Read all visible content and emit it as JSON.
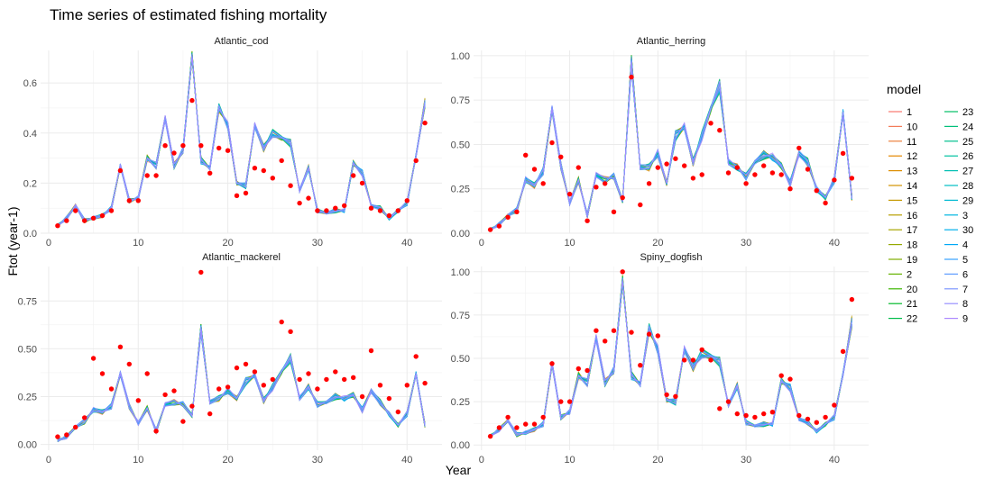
{
  "chart_data": {
    "type": "line",
    "title": "Time series of estimated fishing mortality",
    "xlabel": "Year",
    "ylabel": "Ftot (year-1)",
    "legend": {
      "title": "model",
      "placement": "right",
      "entries": [
        "1",
        "10",
        "11",
        "12",
        "13",
        "14",
        "15",
        "16",
        "17",
        "18",
        "19",
        "2",
        "20",
        "21",
        "22",
        "23",
        "24",
        "25",
        "26",
        "27",
        "28",
        "29",
        "3",
        "30",
        "4",
        "5",
        "6",
        "7",
        "8",
        "9"
      ],
      "colors": [
        "#F8766D",
        "#F37B59",
        "#ED813E",
        "#E58700",
        "#DC8D00",
        "#D19300",
        "#C59900",
        "#B79F00",
        "#A7A500",
        "#95A900",
        "#7FAE00",
        "#64B200",
        "#3BB600",
        "#00B929",
        "#00BC49",
        "#00BE63",
        "#00C07A",
        "#00C08E",
        "#00C1A1",
        "#00BFB2",
        "#00BDC3",
        "#00BAD2",
        "#00B5E0",
        "#00AFEC",
        "#00A8F6",
        "#35A2FF",
        "#5E9BFF",
        "#7D96FF",
        "#978FFF",
        "#AC88FF"
      ]
    },
    "x_ticks": [
      0,
      10,
      20,
      30,
      40
    ],
    "points_color": "#FF0000",
    "facets": [
      {
        "name": "Atlantic_cod",
        "ylim": [
          0,
          0.73
        ],
        "y_ticks": [
          0.0,
          0.2,
          0.4,
          0.6
        ],
        "y_tick_labels": [
          "0.0",
          "0.2",
          "0.4",
          "0.6"
        ],
        "x": [
          1,
          2,
          3,
          4,
          5,
          6,
          7,
          8,
          9,
          10,
          11,
          12,
          13,
          14,
          15,
          16,
          17,
          18,
          19,
          20,
          21,
          22,
          23,
          24,
          25,
          26,
          27,
          28,
          29,
          30,
          31,
          32,
          33,
          34,
          35,
          36,
          37,
          38,
          39,
          40,
          41,
          42
        ],
        "model_mean": [
          0.03,
          0.06,
          0.11,
          0.05,
          0.06,
          0.07,
          0.1,
          0.27,
          0.13,
          0.14,
          0.3,
          0.27,
          0.46,
          0.27,
          0.33,
          0.71,
          0.29,
          0.26,
          0.5,
          0.43,
          0.2,
          0.19,
          0.43,
          0.34,
          0.4,
          0.38,
          0.36,
          0.17,
          0.26,
          0.09,
          0.08,
          0.09,
          0.09,
          0.28,
          0.24,
          0.11,
          0.1,
          0.06,
          0.09,
          0.12,
          0.31,
          0.52
        ],
        "observed": [
          0.03,
          0.05,
          0.09,
          0.05,
          0.06,
          0.07,
          0.09,
          0.25,
          0.13,
          0.13,
          0.23,
          0.23,
          0.35,
          0.32,
          0.35,
          0.53,
          0.35,
          0.24,
          0.34,
          0.33,
          0.15,
          0.16,
          0.26,
          0.25,
          0.22,
          0.29,
          0.19,
          0.12,
          0.14,
          0.09,
          0.09,
          0.1,
          0.11,
          0.23,
          0.2,
          0.1,
          0.09,
          0.07,
          0.09,
          0.13,
          0.29,
          0.44
        ]
      },
      {
        "name": "Atlantic_herring",
        "ylim": [
          0,
          1.03
        ],
        "y_ticks": [
          0.0,
          0.25,
          0.5,
          0.75,
          1.0
        ],
        "y_tick_labels": [
          "0.00",
          "0.25",
          "0.50",
          "0.75",
          "1.00"
        ],
        "x": [
          1,
          2,
          3,
          4,
          5,
          6,
          7,
          8,
          9,
          10,
          11,
          12,
          13,
          14,
          15,
          16,
          17,
          18,
          19,
          20,
          21,
          22,
          23,
          24,
          25,
          26,
          27,
          28,
          29,
          30,
          31,
          32,
          33,
          34,
          35,
          36,
          37,
          38,
          39,
          40,
          41,
          42
        ],
        "model_mean": [
          0.02,
          0.05,
          0.1,
          0.13,
          0.3,
          0.27,
          0.35,
          0.7,
          0.38,
          0.17,
          0.3,
          0.1,
          0.33,
          0.3,
          0.32,
          0.18,
          0.96,
          0.37,
          0.37,
          0.45,
          0.28,
          0.55,
          0.6,
          0.4,
          0.55,
          0.7,
          0.83,
          0.4,
          0.37,
          0.32,
          0.4,
          0.44,
          0.43,
          0.38,
          0.28,
          0.45,
          0.4,
          0.25,
          0.2,
          0.3,
          0.68,
          0.2
        ],
        "observed": [
          0.02,
          0.04,
          0.09,
          0.12,
          0.44,
          0.36,
          0.28,
          0.51,
          0.43,
          0.22,
          0.37,
          0.07,
          0.26,
          0.28,
          0.12,
          0.2,
          0.88,
          0.16,
          0.28,
          0.37,
          0.39,
          0.42,
          0.38,
          0.31,
          0.33,
          0.62,
          0.58,
          0.34,
          0.37,
          0.28,
          0.33,
          0.38,
          0.34,
          0.33,
          0.25,
          0.48,
          0.36,
          0.24,
          0.17,
          0.3,
          0.45,
          0.31
        ]
      },
      {
        "name": "Atlantic_mackerel",
        "ylim": [
          -0.03,
          0.93
        ],
        "y_ticks": [
          0.0,
          0.25,
          0.5,
          0.75
        ],
        "y_tick_labels": [
          "0.00",
          "0.25",
          "0.50",
          "0.75"
        ],
        "x": [
          1,
          2,
          3,
          4,
          5,
          6,
          7,
          8,
          9,
          10,
          11,
          12,
          13,
          14,
          15,
          16,
          17,
          18,
          19,
          20,
          21,
          22,
          23,
          24,
          25,
          26,
          27,
          28,
          29,
          30,
          31,
          32,
          33,
          34,
          35,
          36,
          37,
          38,
          39,
          40,
          41,
          42
        ],
        "model_mean": [
          0.02,
          0.04,
          0.09,
          0.12,
          0.18,
          0.17,
          0.2,
          0.37,
          0.2,
          0.11,
          0.19,
          0.07,
          0.21,
          0.22,
          0.21,
          0.15,
          0.6,
          0.22,
          0.24,
          0.28,
          0.24,
          0.33,
          0.36,
          0.23,
          0.3,
          0.38,
          0.45,
          0.24,
          0.3,
          0.21,
          0.22,
          0.25,
          0.24,
          0.26,
          0.18,
          0.28,
          0.22,
          0.16,
          0.1,
          0.16,
          0.37,
          0.1
        ],
        "observed": [
          0.04,
          0.05,
          0.09,
          0.14,
          0.45,
          0.37,
          0.29,
          0.51,
          0.42,
          0.23,
          0.37,
          0.07,
          0.26,
          0.28,
          0.12,
          0.2,
          0.9,
          0.16,
          0.29,
          0.3,
          0.4,
          0.42,
          0.38,
          0.31,
          0.34,
          0.64,
          0.59,
          0.34,
          0.37,
          0.29,
          0.34,
          0.38,
          0.34,
          0.35,
          0.25,
          0.49,
          0.31,
          0.24,
          0.17,
          0.31,
          0.46,
          0.32
        ]
      },
      {
        "name": "Spiny_dogfish",
        "ylim": [
          -0.03,
          1.03
        ],
        "y_ticks": [
          0.0,
          0.25,
          0.5,
          0.75,
          1.0
        ],
        "y_tick_labels": [
          "0.00",
          "0.25",
          "0.50",
          "0.75",
          "1.00"
        ],
        "x": [
          1,
          2,
          3,
          4,
          5,
          6,
          7,
          8,
          9,
          10,
          11,
          12,
          13,
          14,
          15,
          16,
          17,
          18,
          19,
          20,
          21,
          22,
          23,
          24,
          25,
          26,
          27,
          28,
          29,
          30,
          31,
          32,
          33,
          34,
          35,
          36,
          37,
          38,
          39,
          40,
          41,
          42
        ],
        "model_mean": [
          0.05,
          0.09,
          0.14,
          0.06,
          0.07,
          0.09,
          0.12,
          0.47,
          0.16,
          0.19,
          0.4,
          0.36,
          0.62,
          0.36,
          0.43,
          0.95,
          0.4,
          0.35,
          0.67,
          0.55,
          0.26,
          0.25,
          0.55,
          0.45,
          0.53,
          0.51,
          0.48,
          0.23,
          0.34,
          0.13,
          0.11,
          0.12,
          0.12,
          0.37,
          0.33,
          0.15,
          0.13,
          0.08,
          0.12,
          0.16,
          0.41,
          0.71
        ],
        "observed": [
          0.05,
          0.1,
          0.16,
          0.1,
          0.12,
          0.12,
          0.16,
          0.47,
          0.25,
          0.25,
          0.44,
          0.43,
          0.66,
          0.6,
          0.66,
          1.0,
          0.65,
          0.46,
          0.64,
          0.63,
          0.29,
          0.28,
          0.49,
          0.49,
          0.55,
          0.49,
          0.21,
          0.25,
          0.18,
          0.17,
          0.16,
          0.18,
          0.19,
          0.4,
          0.38,
          0.17,
          0.15,
          0.13,
          0.16,
          0.23,
          0.54,
          0.84
        ]
      }
    ]
  }
}
